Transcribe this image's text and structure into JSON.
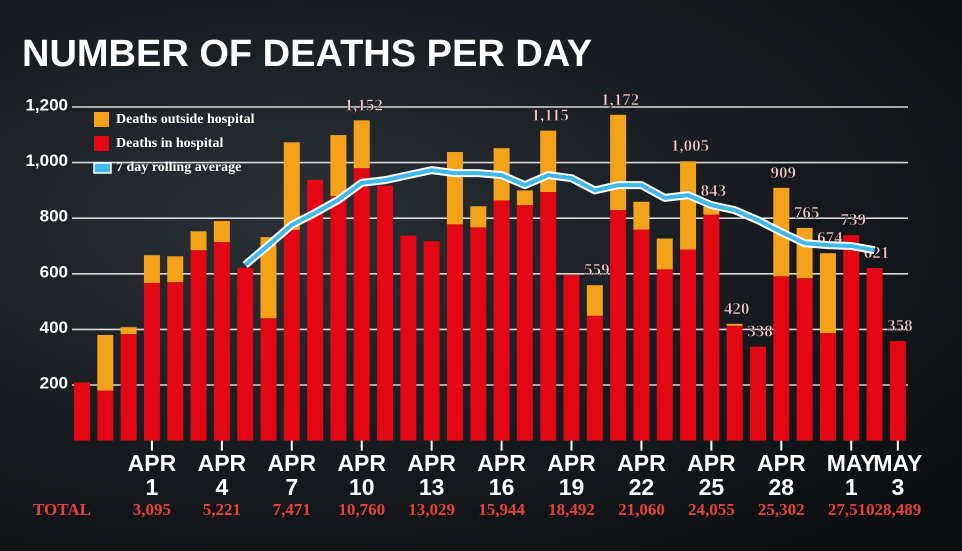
{
  "chart_data": {
    "type": "bar",
    "title": "NUMBER OF DEATHS PER DAY",
    "categories": [
      null,
      null,
      null,
      "APR 1",
      null,
      null,
      "APR 4",
      null,
      null,
      "APR 7",
      null,
      null,
      "APR 10",
      null,
      null,
      "APR 13",
      null,
      null,
      "APR 16",
      null,
      null,
      "APR 19",
      null,
      null,
      "APR 22",
      null,
      null,
      "APR 25",
      null,
      null,
      "APR 28",
      null,
      null,
      "MAY 1",
      null,
      "MAY 3"
    ],
    "stacked": true,
    "series": [
      {
        "name": "Deaths in hospital",
        "color": "#e30613",
        "values": [
          209,
          180,
          383,
          567,
          570,
          685,
          714,
          621,
          440,
          758,
          938,
          880,
          980,
          917,
          737,
          717,
          778,
          767,
          864,
          847,
          894,
          596,
          449,
          829,
          759,
          616,
          687,
          813,
          413,
          338,
          591,
          584,
          387,
          739,
          621,
          358
        ]
      },
      {
        "name": "Deaths outside hospital",
        "color": "#f5a21b",
        "values": [
          0,
          200,
          25,
          100,
          93,
          68,
          76,
          0,
          292,
          315,
          0,
          219,
          172,
          0,
          0,
          0,
          260,
          76,
          188,
          53,
          221,
          0,
          110,
          343,
          100,
          111,
          318,
          30,
          7,
          0,
          318,
          181,
          287,
          0,
          0,
          0
        ]
      },
      {
        "name": "7 day rolling average",
        "type": "line",
        "color": "#3fb8ec",
        "values": [
          null,
          null,
          null,
          null,
          null,
          null,
          null,
          632,
          703,
          776,
          819,
          866,
          927,
          937,
          955,
          973,
          962,
          962,
          955,
          919,
          955,
          944,
          900,
          919,
          919,
          873,
          883,
          847,
          829,
          793,
          750,
          710,
          703,
          700,
          685,
          null
        ]
      }
    ],
    "total_labels": [
      null,
      null,
      null,
      null,
      null,
      null,
      null,
      null,
      null,
      null,
      null,
      null,
      "1,152",
      null,
      null,
      null,
      null,
      null,
      null,
      null,
      "1,115",
      null,
      "559",
      "1,172",
      null,
      null,
      "1,005",
      "843",
      "420",
      "338",
      "909",
      "765",
      "674",
      "739",
      "621",
      "358"
    ],
    "ylim": [
      0,
      1200
    ],
    "yticks": [
      {
        "value": 200,
        "label": "200"
      },
      {
        "value": 400,
        "label": "400"
      },
      {
        "value": 600,
        "label": "600"
      },
      {
        "value": 800,
        "label": "800"
      },
      {
        "value": 1000,
        "label": "1,000"
      },
      {
        "value": 1200,
        "label": "1,200"
      }
    ],
    "grid": true,
    "legend": "top-left",
    "cumulative_totals": {
      "label": "TOTAL",
      "values": [
        {
          "value": 3095,
          "label": "3,095"
        },
        {
          "value": 5221,
          "label": "5,221"
        },
        {
          "value": 7471,
          "label": "7,471"
        },
        {
          "value": 10760,
          "label": "10,760"
        },
        {
          "value": 13029,
          "label": "13,029"
        },
        {
          "value": 15944,
          "label": "15,944"
        },
        {
          "value": 18492,
          "label": "18,492"
        },
        {
          "value": 21060,
          "label": "21,060"
        },
        {
          "value": 24055,
          "label": "24,055"
        },
        {
          "value": 25302,
          "label": "25,302"
        },
        {
          "value": 27510,
          "label": "27,510"
        },
        {
          "value": 28489,
          "label": "28,489"
        }
      ]
    }
  }
}
